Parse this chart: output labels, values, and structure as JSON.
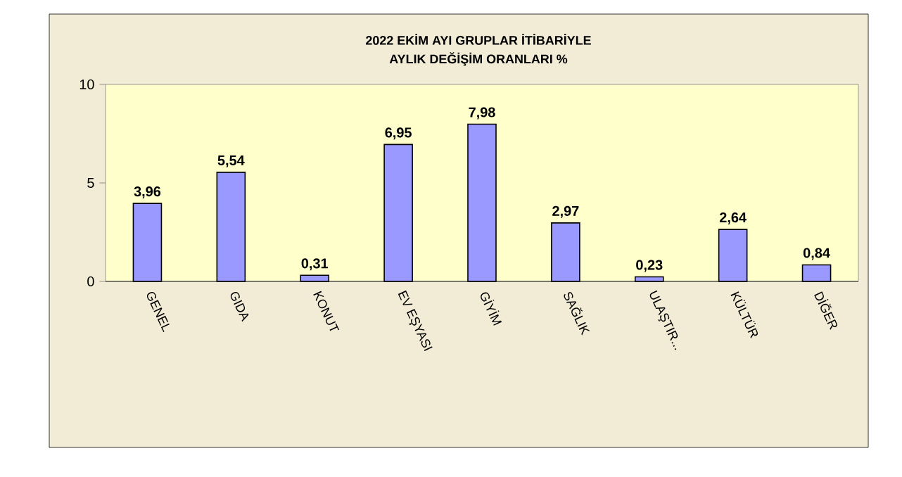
{
  "chart_data": {
    "type": "bar",
    "title": "2022 EKİM  AYI  GRUPLAR İTİBARİYLE",
    "subtitle": "AYLIK DEĞİŞİM  ORANLARI  %",
    "categories": [
      "GENEL",
      "GIDA",
      "KONUT",
      "EV EŞYASI",
      "GİYİM",
      "SAĞLIK",
      "ULAŞTIR...",
      "KÜLTÜR",
      "DİĞER"
    ],
    "values": [
      3.96,
      5.54,
      0.31,
      6.95,
      7.98,
      2.97,
      0.23,
      2.64,
      0.84
    ],
    "value_labels": [
      "3,96",
      "5,54",
      "0,31",
      "6,95",
      "7,98",
      "2,97",
      "0,23",
      "2,64",
      "0,84"
    ],
    "color": "#9999ff",
    "ylim": [
      0,
      10
    ],
    "yticks": [
      0,
      5,
      10
    ],
    "grid": false
  }
}
